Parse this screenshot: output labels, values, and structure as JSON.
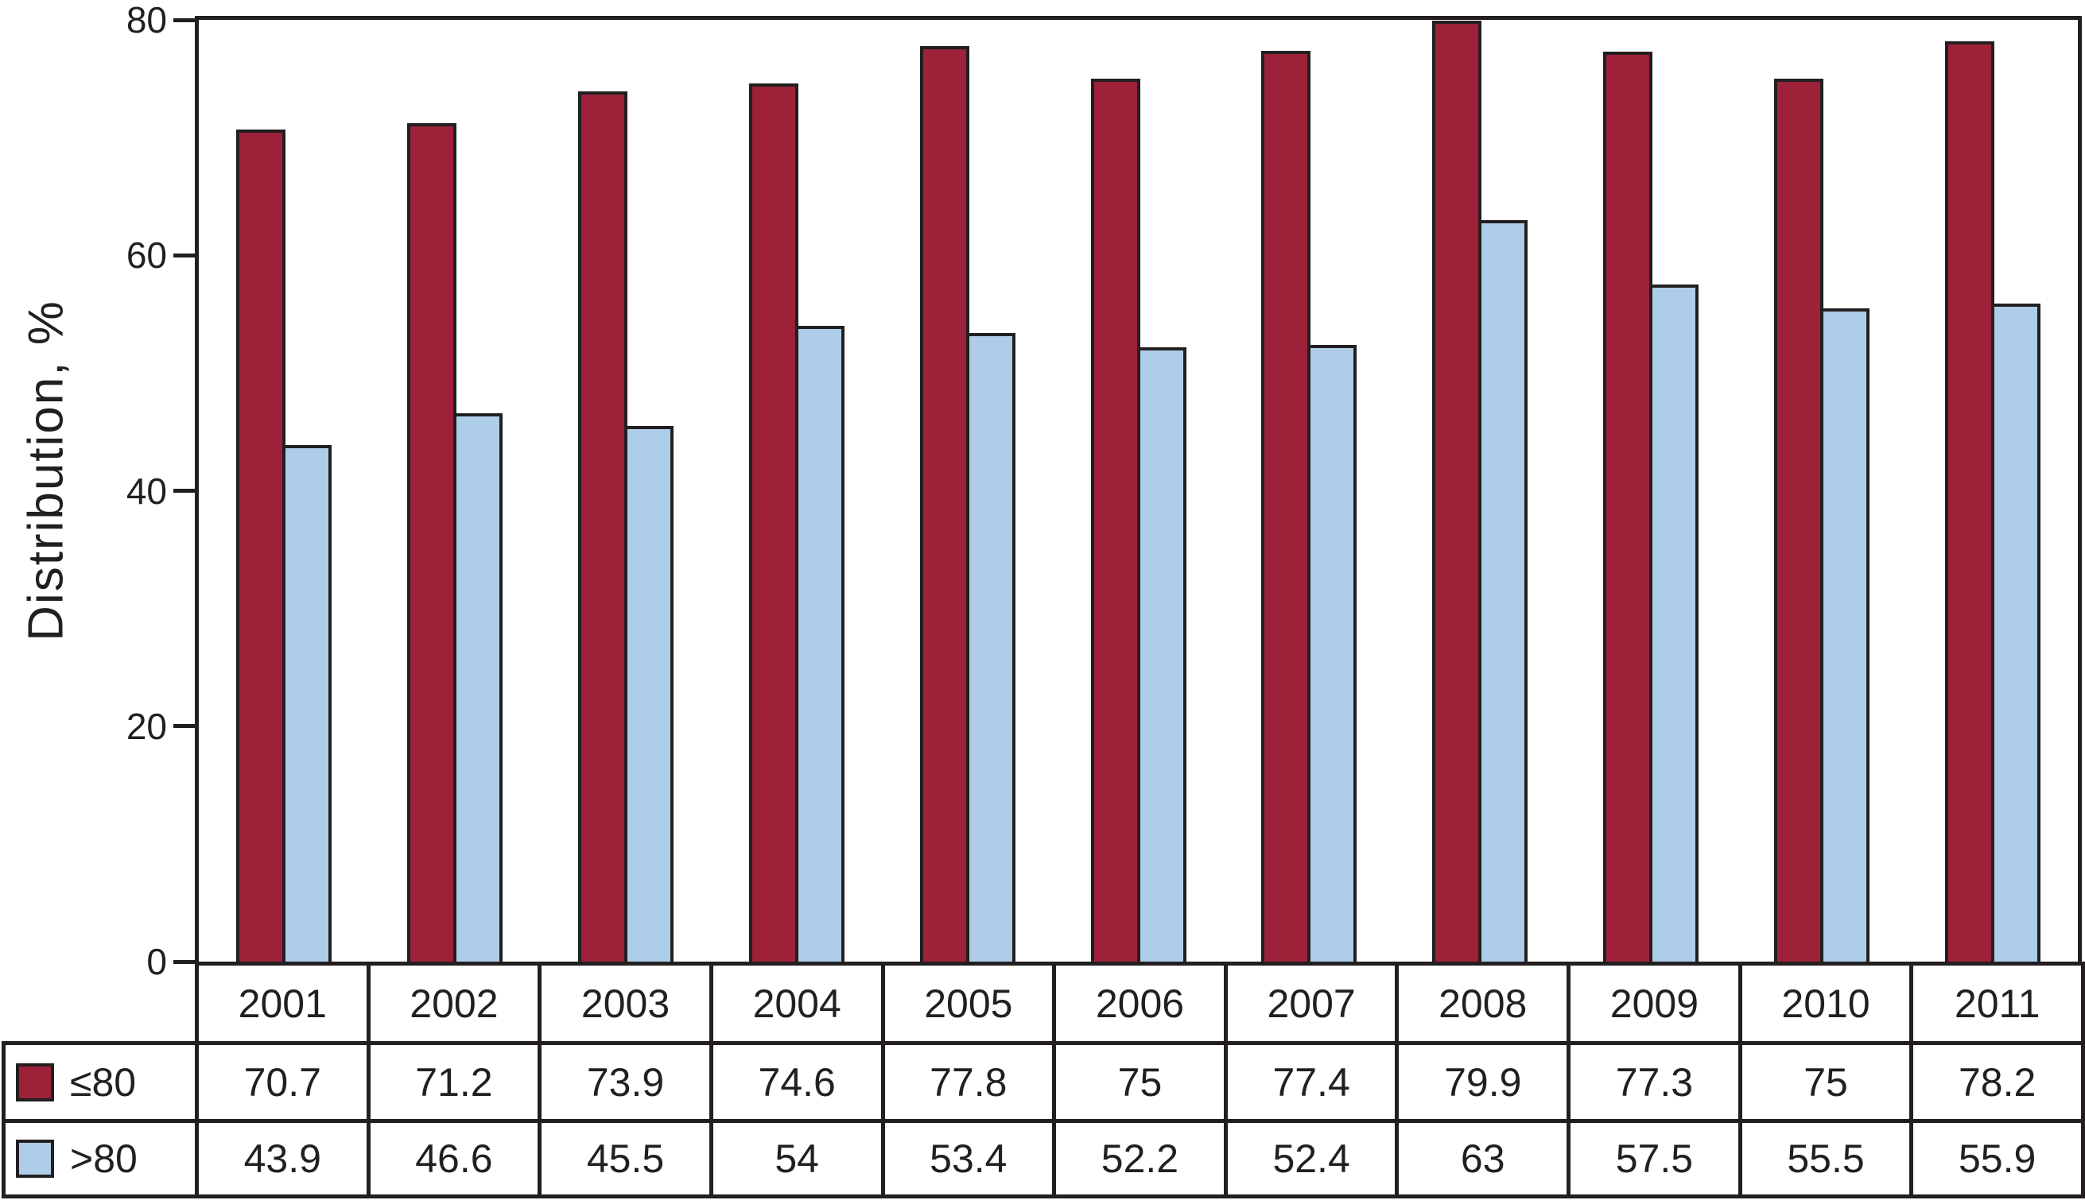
{
  "chart_data": {
    "type": "bar",
    "title": "",
    "xlabel": "",
    "ylabel": "Distribution, %",
    "ylim": [
      0,
      80
    ],
    "yticks": [
      0,
      20,
      40,
      60,
      80
    ],
    "grid": false,
    "legend_position": "table rows below chart (left column)",
    "categories": [
      "2001",
      "2002",
      "2003",
      "2004",
      "2005",
      "2006",
      "2007",
      "2008",
      "2009",
      "2010",
      "2011"
    ],
    "series": [
      {
        "name": "≤80",
        "color": "#9c2139",
        "values": [
          70.7,
          71.2,
          73.9,
          74.6,
          77.8,
          75,
          77.4,
          79.9,
          77.3,
          75,
          78.2
        ]
      },
      {
        "name": ">80",
        "color": "#aecde9",
        "values": [
          43.9,
          46.6,
          45.5,
          54,
          53.4,
          52.2,
          52.4,
          63,
          57.5,
          55.5,
          55.9
        ]
      }
    ],
    "outline_color": "#231f20",
    "background_color": "#ffffff"
  }
}
